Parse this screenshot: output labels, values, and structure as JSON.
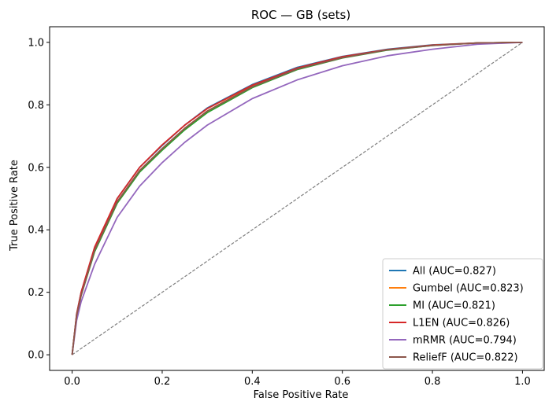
{
  "chart_data": {
    "type": "line",
    "title": "ROC — GB (sets)",
    "xlabel": "False Positive Rate",
    "ylabel": "True Positive Rate",
    "xlim": [
      -0.05,
      1.05
    ],
    "ylim": [
      -0.05,
      1.05
    ],
    "xticks": [
      0.0,
      0.2,
      0.4,
      0.6,
      0.8,
      1.0
    ],
    "yticks": [
      0.0,
      0.2,
      0.4,
      0.6,
      0.8,
      1.0
    ],
    "xtick_labels": [
      "0.0",
      "0.2",
      "0.4",
      "0.6",
      "0.8",
      "1.0"
    ],
    "ytick_labels": [
      "0.0",
      "0.2",
      "0.4",
      "0.6",
      "0.8",
      "1.0"
    ],
    "legend_position": "bottom-right",
    "grid": false,
    "series": [
      {
        "name": "All (AUC=0.827)",
        "color": "#1f77b4",
        "x": [
          0,
          0.01,
          0.02,
          0.05,
          0.1,
          0.15,
          0.2,
          0.25,
          0.3,
          0.4,
          0.5,
          0.6,
          0.7,
          0.8,
          0.9,
          1.0
        ],
        "y": [
          0,
          0.13,
          0.2,
          0.34,
          0.5,
          0.6,
          0.67,
          0.735,
          0.79,
          0.865,
          0.92,
          0.955,
          0.978,
          0.992,
          0.998,
          1.0
        ]
      },
      {
        "name": "Gumbel (AUC=0.823)",
        "color": "#ff7f0e",
        "x": [
          0,
          0.01,
          0.02,
          0.05,
          0.1,
          0.15,
          0.2,
          0.25,
          0.3,
          0.4,
          0.5,
          0.6,
          0.7,
          0.8,
          0.9,
          1.0
        ],
        "y": [
          0,
          0.125,
          0.195,
          0.335,
          0.49,
          0.59,
          0.66,
          0.725,
          0.78,
          0.86,
          0.915,
          0.952,
          0.976,
          0.991,
          0.998,
          1.0
        ]
      },
      {
        "name": "MI (AUC=0.821)",
        "color": "#2ca02c",
        "x": [
          0,
          0.01,
          0.02,
          0.05,
          0.1,
          0.15,
          0.2,
          0.25,
          0.3,
          0.4,
          0.5,
          0.6,
          0.7,
          0.8,
          0.9,
          1.0
        ],
        "y": [
          0,
          0.125,
          0.19,
          0.33,
          0.485,
          0.585,
          0.655,
          0.72,
          0.775,
          0.855,
          0.913,
          0.95,
          0.975,
          0.99,
          0.998,
          1.0
        ]
      },
      {
        "name": "L1EN (AUC=0.826)",
        "color": "#d62728",
        "x": [
          0,
          0.01,
          0.02,
          0.05,
          0.1,
          0.15,
          0.2,
          0.25,
          0.3,
          0.4,
          0.5,
          0.6,
          0.7,
          0.8,
          0.9,
          1.0
        ],
        "y": [
          0,
          0.13,
          0.2,
          0.345,
          0.5,
          0.6,
          0.672,
          0.735,
          0.788,
          0.863,
          0.918,
          0.954,
          0.977,
          0.991,
          0.998,
          1.0
        ]
      },
      {
        "name": "mRMR (AUC=0.794)",
        "color": "#9467bd",
        "x": [
          0,
          0.01,
          0.02,
          0.05,
          0.1,
          0.15,
          0.2,
          0.25,
          0.3,
          0.4,
          0.5,
          0.6,
          0.7,
          0.8,
          0.9,
          1.0
        ],
        "y": [
          0,
          0.11,
          0.17,
          0.29,
          0.44,
          0.54,
          0.615,
          0.68,
          0.735,
          0.82,
          0.88,
          0.925,
          0.957,
          0.978,
          0.994,
          1.0
        ]
      },
      {
        "name": "ReliefF (AUC=0.822)",
        "color": "#8c564b",
        "x": [
          0,
          0.01,
          0.02,
          0.05,
          0.1,
          0.15,
          0.2,
          0.25,
          0.3,
          0.4,
          0.5,
          0.6,
          0.7,
          0.8,
          0.9,
          1.0
        ],
        "y": [
          0,
          0.125,
          0.19,
          0.335,
          0.49,
          0.59,
          0.66,
          0.725,
          0.78,
          0.858,
          0.915,
          0.951,
          0.976,
          0.99,
          0.998,
          1.0
        ]
      }
    ],
    "reference_line": {
      "x": [
        0,
        1
      ],
      "y": [
        0,
        1
      ],
      "color": "#808080",
      "style": "dashed"
    }
  }
}
